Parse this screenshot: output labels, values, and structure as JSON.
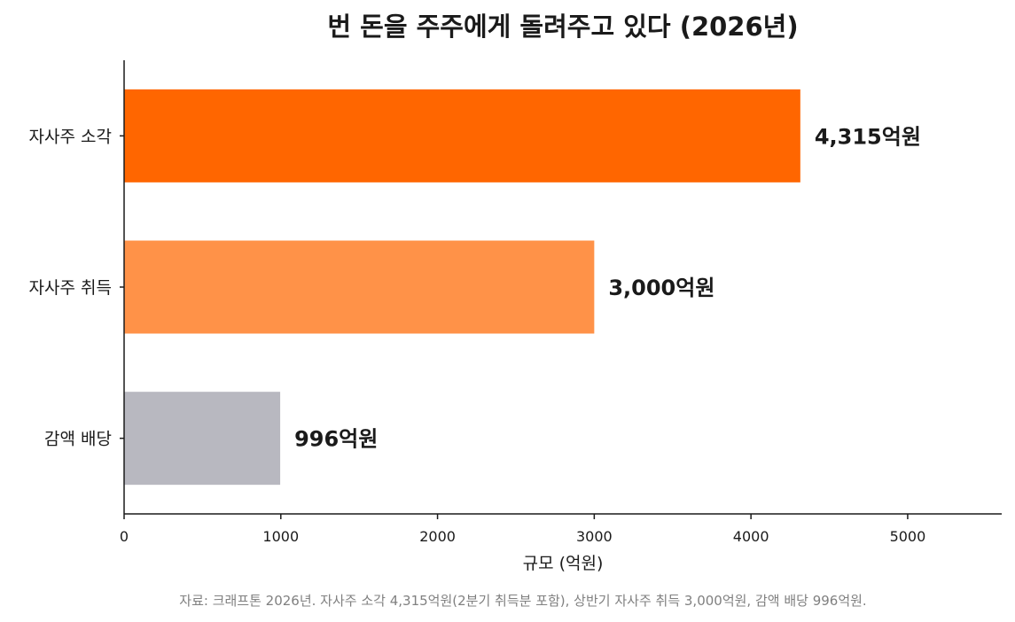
{
  "chart_data": {
    "type": "bar",
    "orientation": "horizontal",
    "title": "번 돈을 주주에게 돌려주고 있다 (2026년)",
    "categories": [
      "자사주 소각",
      "자사주 취득",
      "감액 배당"
    ],
    "values": [
      4315,
      3000,
      996
    ],
    "data_labels": [
      "4,315억원",
      "3,000억원",
      "996억원"
    ],
    "colors": [
      "#ff6600",
      "#ff9248",
      "#b8b8c0"
    ],
    "xlabel": "규모 (억원)",
    "ylabel": "",
    "xlim": [
      0,
      5600
    ],
    "xticks": [
      0,
      1000,
      2000,
      3000,
      4000,
      5000
    ],
    "grid": false,
    "source": "자료: 크래프톤 2026년. 자사주 소각 4,315억원(2분기 취득분 포함), 상반기 자사주 취득 3,000억원, 감액 배당 996억원."
  }
}
